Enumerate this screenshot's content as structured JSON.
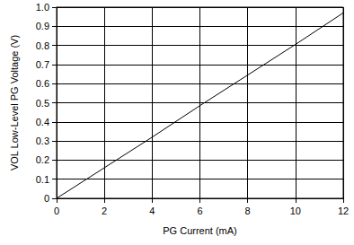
{
  "chart_data": {
    "type": "line",
    "x_label": "PG Current (mA)",
    "y_label": "VOL Low-Level PG Voltage (V)",
    "x": [
      0,
      2,
      4,
      6,
      8,
      10,
      12
    ],
    "values": [
      0,
      0.16,
      0.32,
      0.485,
      0.645,
      0.805,
      0.97
    ],
    "color": "#000000",
    "xlim": [
      0,
      12
    ],
    "xticks": [
      0,
      2,
      4,
      6,
      8,
      10,
      12
    ],
    "ylim": [
      0,
      1
    ],
    "yticks": [
      0,
      0.1,
      0.2,
      0.3,
      0.4,
      0.5,
      0.6,
      0.7,
      0.8,
      0.9,
      {
        "value": 1,
        "label": "1.0"
      }
    ],
    "grid": true
  }
}
